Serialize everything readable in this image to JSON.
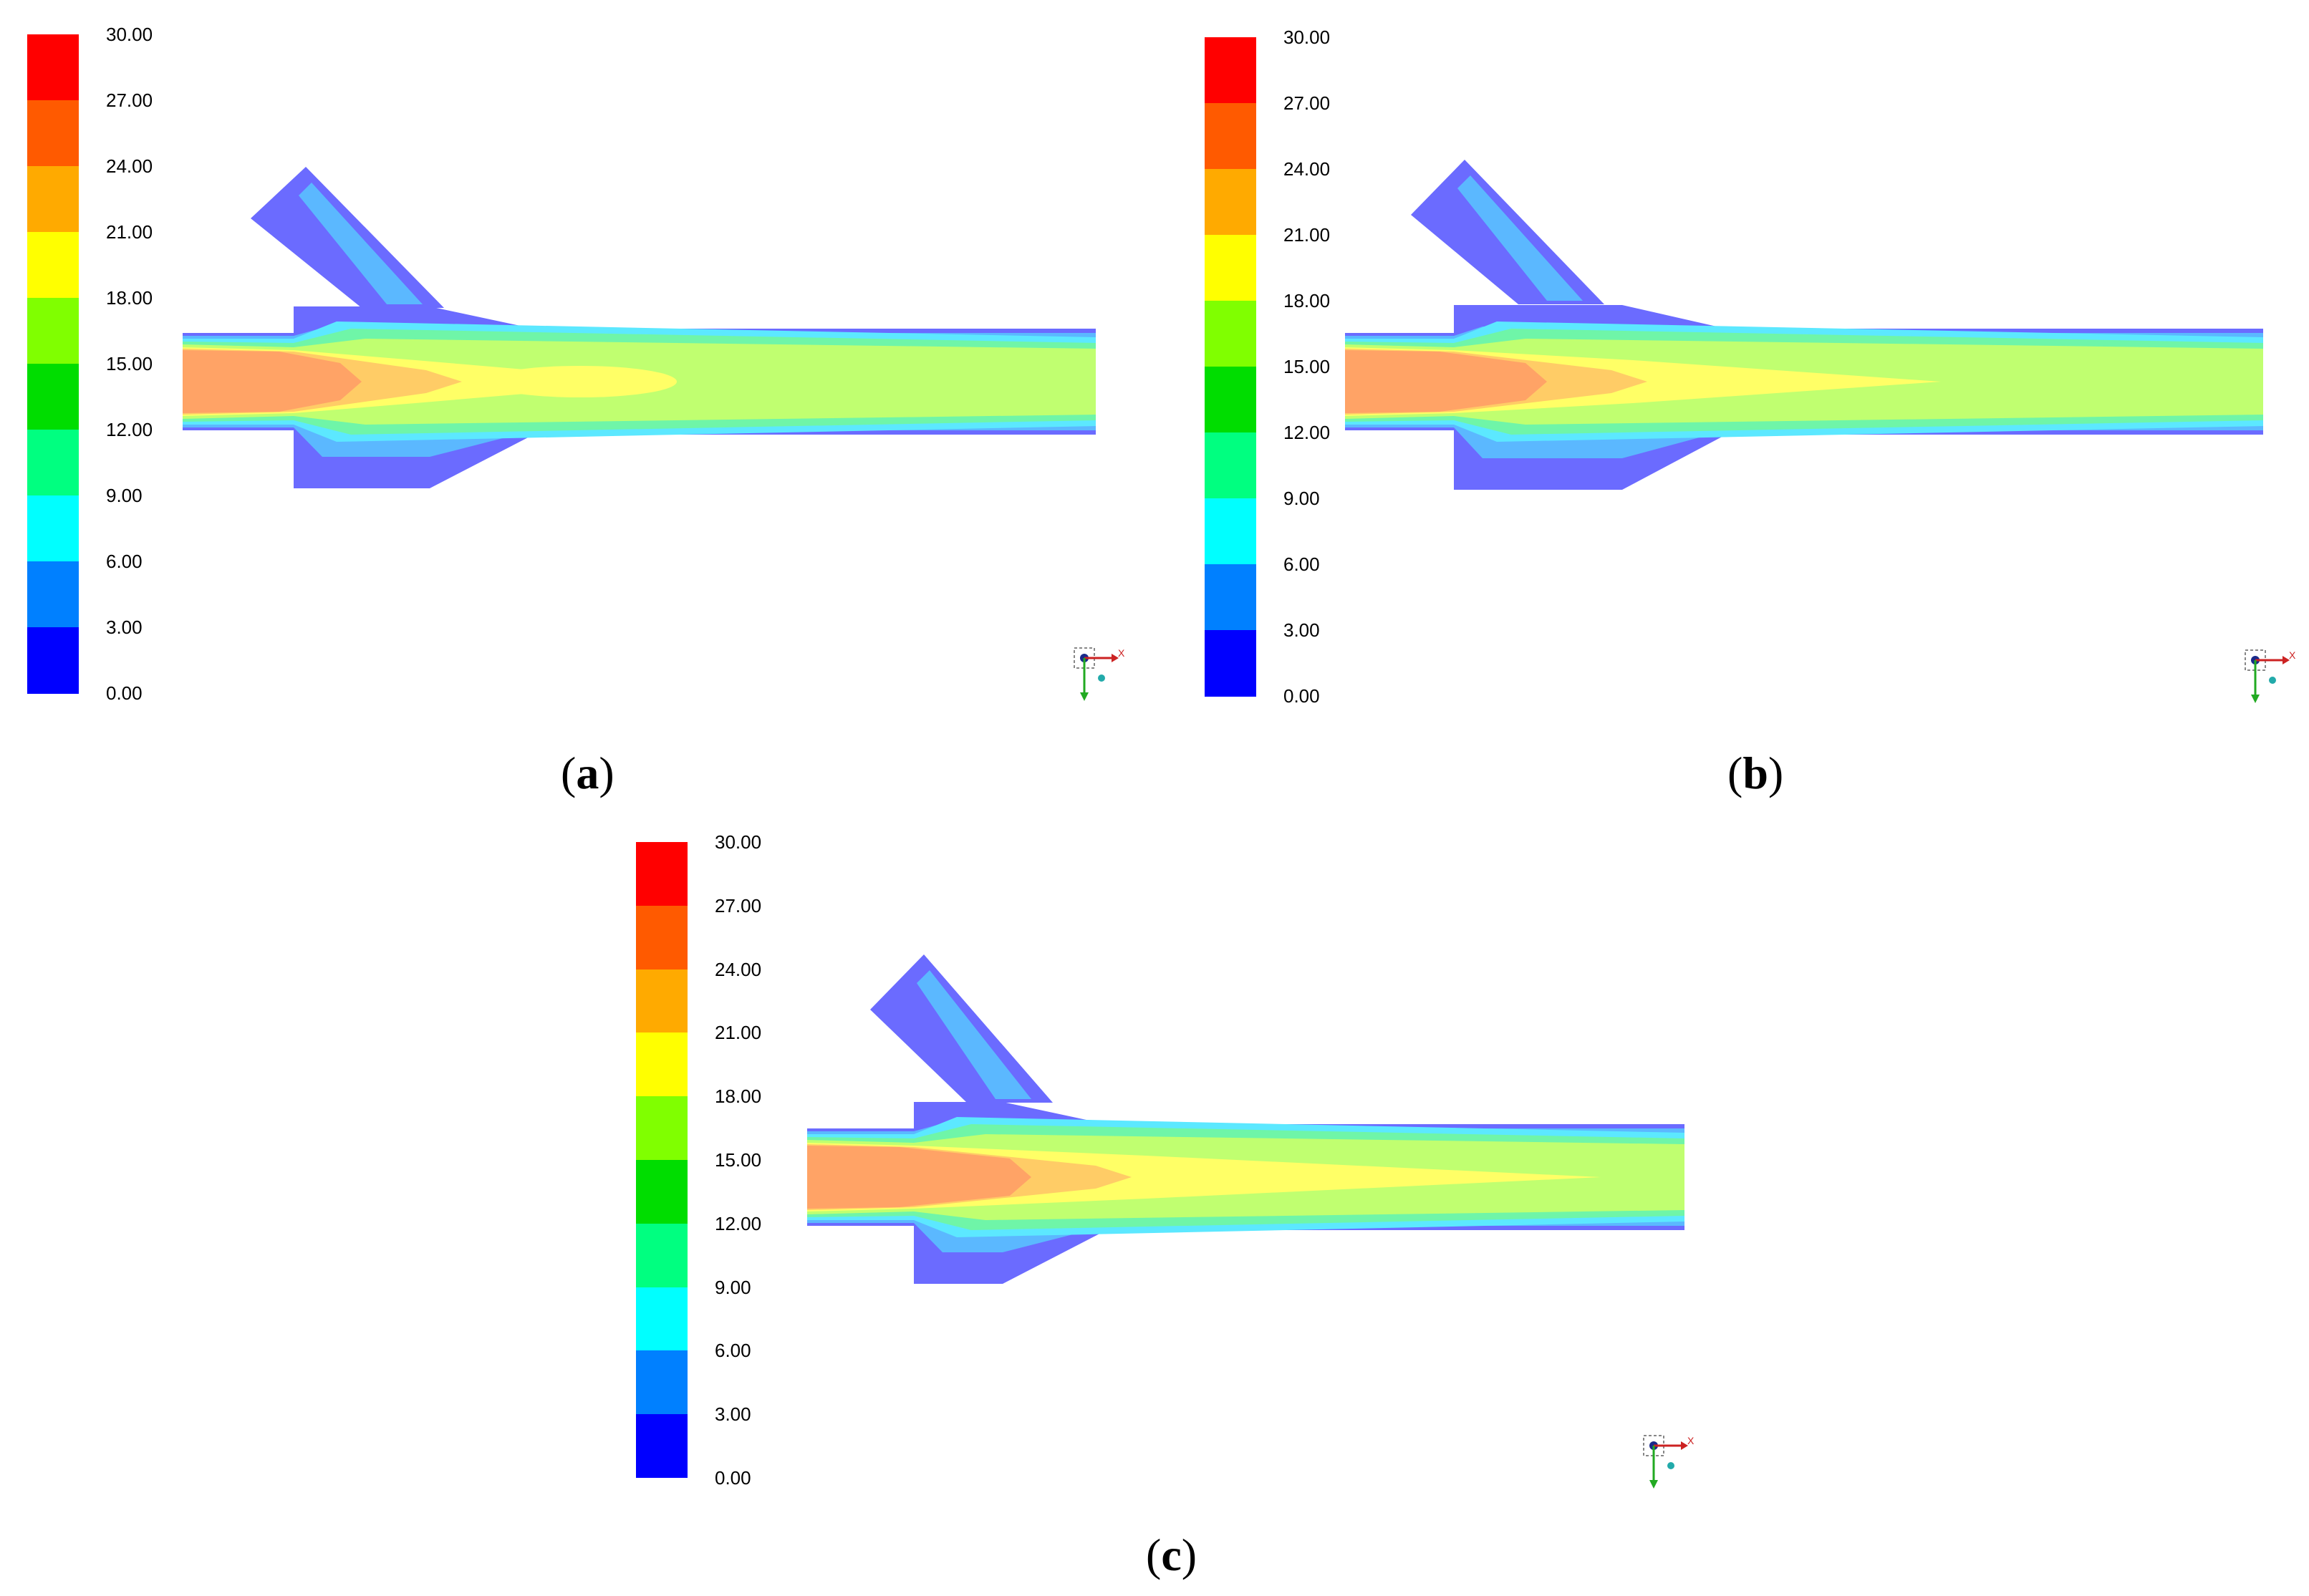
{
  "legend": {
    "ticks": [
      "30.00",
      "27.00",
      "24.00",
      "21.00",
      "18.00",
      "15.00",
      "12.00",
      "9.00",
      "6.00",
      "3.00",
      "0.00"
    ],
    "colors": [
      "#ff0000",
      "#ff5a00",
      "#ffaa00",
      "#ffff00",
      "#80ff00",
      "#00dd00",
      "#00ff80",
      "#00ffff",
      "#0080ff",
      "#0000ff"
    ]
  },
  "flow_colors": {
    "wall": "#6b6bff",
    "near_wall": "#5bb8ff",
    "cyan": "#5ce8ff",
    "green_band": "#6ff5a8",
    "light_green": "#c0ff70",
    "yellow": "#ffff66",
    "pale_orange": "#ffcc66",
    "orange": "#ffa366"
  },
  "axis_labels": {
    "x": "X"
  },
  "panels": [
    {
      "id": "a",
      "caption_open": "(",
      "caption_letter": "a",
      "caption_close": ")"
    },
    {
      "id": "b",
      "caption_open": "(",
      "caption_letter": "b",
      "caption_close": ")"
    },
    {
      "id": "c",
      "caption_open": "(",
      "caption_letter": "c",
      "caption_close": ")"
    }
  ]
}
